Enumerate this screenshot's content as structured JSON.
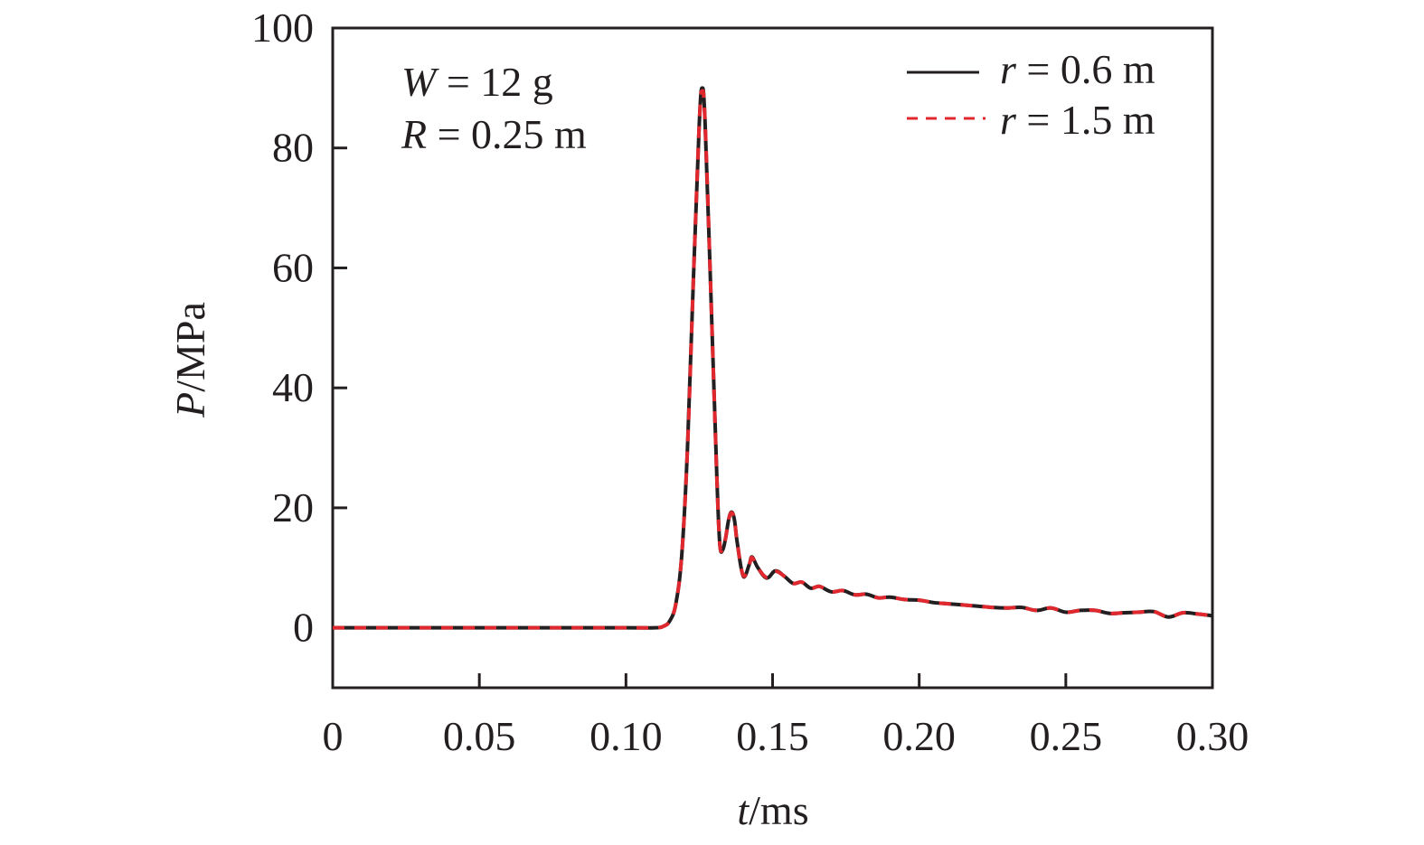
{
  "chart_data": {
    "type": "line",
    "title": "",
    "xlabel": "t/ms",
    "xlabel_italic_part": "t",
    "xlabel_unit_part": "/ms",
    "ylabel": "P/MPa",
    "ylabel_italic_part": "P",
    "ylabel_unit_part": "/MPa",
    "xlim": [
      0,
      0.3
    ],
    "ylim": [
      -10,
      100
    ],
    "xticks": [
      0,
      0.05,
      0.1,
      0.15,
      0.2,
      0.25,
      0.3
    ],
    "xtick_labels": [
      "0",
      "0.05",
      "0.10",
      "0.15",
      "0.20",
      "0.25",
      "0.30"
    ],
    "yticks": [
      0,
      20,
      40,
      60,
      80,
      100
    ],
    "ytick_labels": [
      "0",
      "20",
      "40",
      "60",
      "80",
      "100"
    ],
    "grid": false,
    "legend_position": "upper right",
    "annotations": [
      {
        "italic": "W",
        "text": " = 12 g"
      },
      {
        "italic": "R",
        "text": " = 0.25 m"
      }
    ],
    "series": [
      {
        "name": "r = 0.6 m",
        "legend_italic": "r",
        "legend_text": " = 0.6 m",
        "color": "#231f20",
        "style": "solid",
        "x": [
          0,
          0.05,
          0.1,
          0.11,
          0.113,
          0.115,
          0.117,
          0.119,
          0.121,
          0.123,
          0.125,
          0.126,
          0.127,
          0.129,
          0.131,
          0.132,
          0.133,
          0.134,
          0.135,
          0.136,
          0.137,
          0.138,
          0.14,
          0.142,
          0.143,
          0.145,
          0.148,
          0.151,
          0.154,
          0.157,
          0.16,
          0.163,
          0.166,
          0.17,
          0.174,
          0.178,
          0.182,
          0.186,
          0.19,
          0.195,
          0.2,
          0.205,
          0.21,
          0.215,
          0.22,
          0.225,
          0.23,
          0.235,
          0.24,
          0.245,
          0.25,
          0.255,
          0.26,
          0.265,
          0.27,
          0.275,
          0.28,
          0.285,
          0.29,
          0.295,
          0.3
        ],
        "values": [
          0,
          0,
          0,
          0,
          0.3,
          1.2,
          4,
          12,
          30,
          58,
          84,
          90,
          84,
          55,
          25,
          14,
          13,
          15,
          18,
          19.3,
          18,
          14,
          8.6,
          10.5,
          11.8,
          10,
          8.3,
          9.5,
          8.6,
          7.4,
          7.6,
          6.6,
          6.9,
          6.0,
          6.2,
          5.5,
          5.6,
          5.0,
          5.1,
          4.7,
          4.6,
          4.2,
          4.0,
          3.8,
          3.6,
          3.4,
          3.3,
          3.4,
          2.9,
          3.3,
          2.6,
          2.9,
          2.9,
          2.4,
          2.5,
          2.6,
          2.7,
          1.8,
          2.5,
          2.3,
          2.0
        ]
      },
      {
        "name": "r = 1.5 m",
        "legend_italic": "r",
        "legend_text": " = 1.5 m",
        "color": "#e0282e",
        "style": "dashed",
        "x": [
          0,
          0.05,
          0.1,
          0.11,
          0.113,
          0.115,
          0.117,
          0.119,
          0.121,
          0.123,
          0.125,
          0.126,
          0.127,
          0.129,
          0.131,
          0.132,
          0.133,
          0.134,
          0.135,
          0.136,
          0.137,
          0.138,
          0.14,
          0.142,
          0.143,
          0.145,
          0.148,
          0.151,
          0.154,
          0.157,
          0.16,
          0.163,
          0.166,
          0.17,
          0.174,
          0.178,
          0.182,
          0.186,
          0.19,
          0.195,
          0.2,
          0.205,
          0.21,
          0.215,
          0.22,
          0.225,
          0.23,
          0.235,
          0.24,
          0.245,
          0.25,
          0.255,
          0.26,
          0.265,
          0.27,
          0.275,
          0.28,
          0.285,
          0.29,
          0.295,
          0.3
        ],
        "values": [
          0,
          0,
          0,
          0,
          0.3,
          1.2,
          4,
          12,
          30,
          58,
          84,
          89.5,
          84,
          55,
          25,
          14,
          13.2,
          15,
          18,
          19.2,
          18,
          14,
          8.7,
          10.5,
          11.7,
          10,
          8.4,
          9.4,
          8.6,
          7.4,
          7.6,
          6.6,
          6.9,
          6.0,
          6.2,
          5.5,
          5.6,
          5.0,
          5.1,
          4.7,
          4.6,
          4.2,
          4.0,
          3.8,
          3.6,
          3.4,
          3.3,
          3.4,
          2.9,
          3.3,
          2.6,
          2.9,
          2.9,
          2.4,
          2.5,
          2.6,
          2.7,
          1.8,
          2.5,
          2.3,
          2.0
        ]
      }
    ]
  },
  "colors": {
    "axis": "#231f20",
    "series_solid": "#231f20",
    "series_dashed": "#e0282e",
    "background": "#ffffff"
  }
}
